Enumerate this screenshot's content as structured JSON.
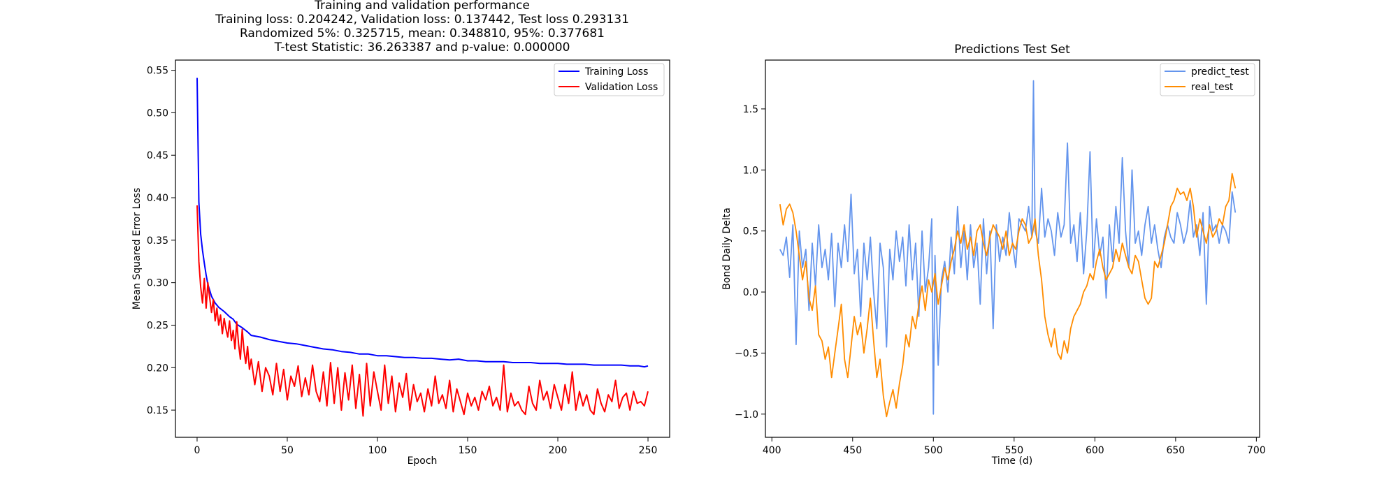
{
  "chart_data": [
    {
      "type": "line",
      "title": [
        "Training and validation performance",
        "Training loss: 0.204242, Validation loss: 0.137442, Test loss 0.293131",
        "Randomized 5%: 0.325715, mean: 0.348810, 95%: 0.377681",
        "T-test Statistic: 36.263387 and p-value: 0.000000"
      ],
      "xlabel": "Epoch",
      "ylabel": "Mean Squared Error Loss",
      "xlim": [
        -12,
        262
      ],
      "ylim": [
        0.118,
        0.562
      ],
      "xticks": [
        0,
        50,
        100,
        150,
        200,
        250
      ],
      "yticks": [
        0.15,
        0.2,
        0.25,
        0.3,
        0.35,
        0.4,
        0.45,
        0.5,
        0.55
      ],
      "ytick_labels": [
        "0.15",
        "0.20",
        "0.25",
        "0.30",
        "0.35",
        "0.40",
        "0.45",
        "0.50",
        "0.55"
      ],
      "legend_position": "top-right",
      "grid": false,
      "series": [
        {
          "name": "Training Loss",
          "color": "#0000ff",
          "x": [
            0,
            1,
            2,
            3,
            4,
            5,
            6,
            8,
            10,
            12,
            15,
            18,
            20,
            22,
            25,
            28,
            30,
            35,
            40,
            45,
            50,
            55,
            60,
            65,
            70,
            75,
            80,
            85,
            90,
            95,
            100,
            105,
            110,
            115,
            120,
            125,
            130,
            135,
            140,
            145,
            150,
            155,
            160,
            165,
            170,
            175,
            180,
            185,
            190,
            195,
            200,
            205,
            210,
            215,
            220,
            225,
            230,
            235,
            240,
            245,
            248,
            250
          ],
          "y": [
            0.541,
            0.395,
            0.357,
            0.338,
            0.323,
            0.309,
            0.298,
            0.284,
            0.276,
            0.271,
            0.266,
            0.26,
            0.257,
            0.251,
            0.247,
            0.242,
            0.238,
            0.236,
            0.233,
            0.231,
            0.229,
            0.228,
            0.226,
            0.224,
            0.222,
            0.221,
            0.219,
            0.218,
            0.216,
            0.216,
            0.214,
            0.214,
            0.213,
            0.212,
            0.212,
            0.211,
            0.211,
            0.21,
            0.209,
            0.21,
            0.208,
            0.208,
            0.207,
            0.207,
            0.207,
            0.206,
            0.206,
            0.206,
            0.205,
            0.205,
            0.205,
            0.204,
            0.204,
            0.204,
            0.203,
            0.203,
            0.203,
            0.203,
            0.202,
            0.202,
            0.201,
            0.202
          ]
        },
        {
          "name": "Validation Loss",
          "color": "#ff0000",
          "x": [
            0,
            1,
            2,
            3,
            4,
            5,
            6,
            7,
            8,
            9,
            10,
            11,
            12,
            13,
            14,
            15,
            16,
            17,
            18,
            19,
            20,
            21,
            22,
            23,
            24,
            25,
            26,
            27,
            28,
            29,
            30,
            32,
            34,
            36,
            38,
            40,
            42,
            44,
            46,
            48,
            50,
            52,
            54,
            56,
            58,
            60,
            62,
            64,
            66,
            68,
            70,
            72,
            74,
            76,
            78,
            80,
            82,
            84,
            86,
            88,
            90,
            92,
            94,
            96,
            98,
            100,
            102,
            104,
            106,
            108,
            110,
            112,
            114,
            116,
            118,
            120,
            122,
            124,
            126,
            128,
            130,
            132,
            134,
            136,
            138,
            140,
            142,
            144,
            146,
            148,
            150,
            152,
            154,
            156,
            158,
            160,
            162,
            164,
            166,
            168,
            170,
            172,
            174,
            176,
            178,
            180,
            182,
            184,
            186,
            188,
            190,
            192,
            194,
            196,
            198,
            200,
            202,
            204,
            206,
            208,
            210,
            212,
            214,
            216,
            218,
            220,
            222,
            224,
            226,
            228,
            230,
            232,
            234,
            236,
            238,
            240,
            242,
            244,
            246,
            248,
            250
          ],
          "y": [
            0.391,
            0.325,
            0.295,
            0.276,
            0.305,
            0.27,
            0.3,
            0.282,
            0.265,
            0.28,
            0.255,
            0.27,
            0.25,
            0.262,
            0.24,
            0.258,
            0.246,
            0.236,
            0.255,
            0.232,
            0.244,
            0.222,
            0.254,
            0.228,
            0.21,
            0.245,
            0.22,
            0.205,
            0.225,
            0.198,
            0.21,
            0.18,
            0.207,
            0.172,
            0.2,
            0.19,
            0.168,
            0.205,
            0.172,
            0.198,
            0.162,
            0.19,
            0.178,
            0.202,
            0.166,
            0.188,
            0.168,
            0.203,
            0.172,
            0.16,
            0.195,
            0.155,
            0.206,
            0.158,
            0.2,
            0.15,
            0.194,
            0.162,
            0.203,
            0.152,
            0.192,
            0.143,
            0.205,
            0.155,
            0.195,
            0.172,
            0.15,
            0.203,
            0.158,
            0.19,
            0.148,
            0.182,
            0.165,
            0.193,
            0.15,
            0.18,
            0.16,
            0.17,
            0.148,
            0.175,
            0.155,
            0.19,
            0.158,
            0.168,
            0.152,
            0.185,
            0.148,
            0.175,
            0.16,
            0.145,
            0.17,
            0.155,
            0.165,
            0.15,
            0.172,
            0.162,
            0.178,
            0.155,
            0.165,
            0.15,
            0.203,
            0.148,
            0.17,
            0.155,
            0.16,
            0.15,
            0.145,
            0.178,
            0.158,
            0.15,
            0.185,
            0.162,
            0.172,
            0.152,
            0.18,
            0.165,
            0.15,
            0.18,
            0.158,
            0.195,
            0.15,
            0.172,
            0.155,
            0.168,
            0.15,
            0.145,
            0.175,
            0.158,
            0.148,
            0.168,
            0.16,
            0.185,
            0.152,
            0.165,
            0.17,
            0.15,
            0.172,
            0.158,
            0.16,
            0.155,
            0.172
          ]
        }
      ]
    },
    {
      "type": "line",
      "title": [
        "Predictions Test Set"
      ],
      "xlabel": "Time (d)",
      "ylabel": "Bond Daily Delta",
      "xlim": [
        396,
        702
      ],
      "ylim": [
        -1.19,
        1.9
      ],
      "xticks": [
        400,
        450,
        500,
        550,
        600,
        650,
        700
      ],
      "yticks": [
        -1.0,
        -0.5,
        0.0,
        0.5,
        1.0,
        1.5
      ],
      "ytick_labels": [
        "−1.0",
        "−0.5",
        "0.0",
        "0.5",
        "1.0",
        "1.5"
      ],
      "legend_position": "top-right",
      "grid": false,
      "series": [
        {
          "name": "predict_test",
          "color": "#6495ed",
          "x": [
            405,
            407,
            409,
            411,
            413,
            415,
            417,
            419,
            421,
            423,
            425,
            427,
            429,
            431,
            433,
            435,
            437,
            439,
            441,
            443,
            445,
            447,
            449,
            451,
            453,
            455,
            457,
            459,
            461,
            463,
            465,
            467,
            469,
            471,
            473,
            475,
            477,
            479,
            481,
            483,
            485,
            487,
            489,
            491,
            493,
            495,
            497,
            499,
            500,
            501,
            503,
            505,
            507,
            509,
            511,
            513,
            515,
            517,
            519,
            521,
            523,
            525,
            527,
            529,
            531,
            533,
            535,
            537,
            539,
            541,
            543,
            545,
            547,
            549,
            551,
            553,
            555,
            557,
            559,
            561,
            562,
            563,
            565,
            567,
            569,
            571,
            573,
            575,
            577,
            579,
            581,
            583,
            585,
            587,
            589,
            591,
            593,
            595,
            597,
            599,
            601,
            603,
            605,
            607,
            609,
            611,
            613,
            615,
            617,
            619,
            621,
            623,
            625,
            627,
            629,
            631,
            633,
            635,
            637,
            639,
            641,
            643,
            645,
            647,
            649,
            651,
            653,
            655,
            657,
            659,
            661,
            663,
            665,
            667,
            669,
            671,
            673,
            675,
            677,
            679,
            681,
            683,
            685,
            687
          ],
          "y": [
            0.35,
            0.3,
            0.45,
            0.12,
            0.55,
            -0.43,
            0.5,
            0.2,
            0.35,
            -0.15,
            0.4,
            0.05,
            0.55,
            0.2,
            0.35,
            0.1,
            0.48,
            -0.12,
            0.4,
            0.2,
            0.55,
            0.25,
            0.8,
            0.15,
            0.35,
            -0.2,
            0.4,
            0.1,
            0.45,
            0.0,
            -0.3,
            0.4,
            0.2,
            -0.45,
            0.35,
            0.1,
            0.5,
            0.25,
            0.45,
            0.05,
            0.55,
            0.1,
            0.4,
            -0.2,
            0.5,
            0.0,
            0.2,
            0.6,
            -1.0,
            0.3,
            -0.6,
            0.1,
            0.25,
            0.0,
            0.45,
            0.15,
            0.7,
            0.2,
            0.5,
            0.1,
            0.55,
            0.2,
            0.4,
            -0.1,
            0.6,
            0.15,
            0.5,
            -0.3,
            0.55,
            0.25,
            0.45,
            0.3,
            0.65,
            0.4,
            0.2,
            0.6,
            0.55,
            0.5,
            0.7,
            0.45,
            1.73,
            0.5,
            0.4,
            0.85,
            0.45,
            0.6,
            0.5,
            0.3,
            0.65,
            0.45,
            0.55,
            1.22,
            0.4,
            0.55,
            0.25,
            0.65,
            0.15,
            0.5,
            1.15,
            0.2,
            0.6,
            0.3,
            0.45,
            -0.05,
            0.55,
            0.25,
            0.7,
            0.4,
            1.1,
            0.5,
            0.2,
            1.0,
            0.4,
            0.5,
            0.3,
            0.55,
            0.7,
            0.4,
            0.55,
            0.35,
            0.2,
            0.45,
            0.55,
            0.45,
            0.4,
            0.65,
            0.55,
            0.4,
            0.5,
            0.75,
            0.45,
            0.55,
            0.3,
            0.65,
            -0.1,
            0.7,
            0.5,
            0.55,
            0.4,
            0.55,
            0.5,
            0.4,
            0.82,
            0.65
          ]
        },
        {
          "name": "real_test",
          "color": "#ff8c00",
          "x": [
            405,
            407,
            409,
            411,
            413,
            415,
            417,
            419,
            421,
            423,
            425,
            427,
            429,
            431,
            433,
            435,
            437,
            439,
            441,
            443,
            445,
            447,
            449,
            451,
            453,
            455,
            457,
            459,
            461,
            463,
            465,
            467,
            469,
            471,
            473,
            475,
            477,
            479,
            481,
            483,
            485,
            487,
            489,
            491,
            493,
            495,
            497,
            499,
            501,
            503,
            505,
            507,
            509,
            511,
            513,
            515,
            517,
            519,
            521,
            523,
            525,
            527,
            529,
            531,
            533,
            535,
            537,
            539,
            541,
            543,
            545,
            547,
            549,
            551,
            553,
            555,
            557,
            559,
            561,
            563,
            565,
            567,
            569,
            571,
            573,
            575,
            577,
            579,
            581,
            583,
            585,
            587,
            589,
            591,
            593,
            595,
            597,
            599,
            601,
            603,
            605,
            607,
            609,
            611,
            613,
            615,
            617,
            619,
            621,
            623,
            625,
            627,
            629,
            631,
            633,
            635,
            637,
            639,
            641,
            643,
            645,
            647,
            649,
            651,
            653,
            655,
            657,
            659,
            661,
            663,
            665,
            667,
            669,
            671,
            673,
            675,
            677,
            679,
            681,
            683,
            685,
            687
          ],
          "y": [
            0.72,
            0.55,
            0.68,
            0.72,
            0.65,
            0.5,
            0.3,
            0.1,
            0.25,
            -0.05,
            -0.15,
            0.05,
            -0.35,
            -0.4,
            -0.55,
            -0.45,
            -0.7,
            -0.5,
            -0.3,
            -0.1,
            -0.55,
            -0.7,
            -0.45,
            -0.2,
            -0.35,
            -0.25,
            -0.5,
            -0.3,
            -0.05,
            -0.4,
            -0.7,
            -0.55,
            -0.85,
            -1.02,
            -0.9,
            -0.8,
            -0.95,
            -0.75,
            -0.6,
            -0.35,
            -0.45,
            -0.2,
            -0.3,
            -0.1,
            0.05,
            -0.15,
            0.1,
            0.0,
            0.15,
            -0.1,
            0.05,
            0.2,
            0.1,
            0.25,
            0.35,
            0.5,
            0.4,
            0.55,
            0.35,
            0.45,
            0.3,
            0.5,
            0.55,
            0.4,
            0.3,
            0.45,
            0.55,
            0.5,
            0.45,
            0.35,
            0.5,
            0.3,
            0.4,
            0.35,
            0.5,
            0.6,
            0.55,
            0.4,
            0.45,
            0.6,
            0.3,
            0.1,
            -0.2,
            -0.35,
            -0.45,
            -0.3,
            -0.5,
            -0.55,
            -0.4,
            -0.5,
            -0.3,
            -0.2,
            -0.15,
            -0.1,
            0.0,
            0.05,
            0.15,
            0.1,
            0.25,
            0.35,
            0.2,
            0.1,
            0.15,
            0.2,
            0.35,
            0.25,
            0.4,
            0.3,
            0.2,
            0.15,
            0.3,
            0.25,
            0.1,
            -0.05,
            -0.1,
            -0.05,
            0.25,
            0.2,
            0.3,
            0.4,
            0.55,
            0.7,
            0.75,
            0.85,
            0.8,
            0.82,
            0.75,
            0.85,
            0.7,
            0.45,
            0.6,
            0.5,
            0.4,
            0.55,
            0.45,
            0.5,
            0.6,
            0.55,
            0.7,
            0.75,
            0.97,
            0.85
          ]
        }
      ]
    }
  ]
}
